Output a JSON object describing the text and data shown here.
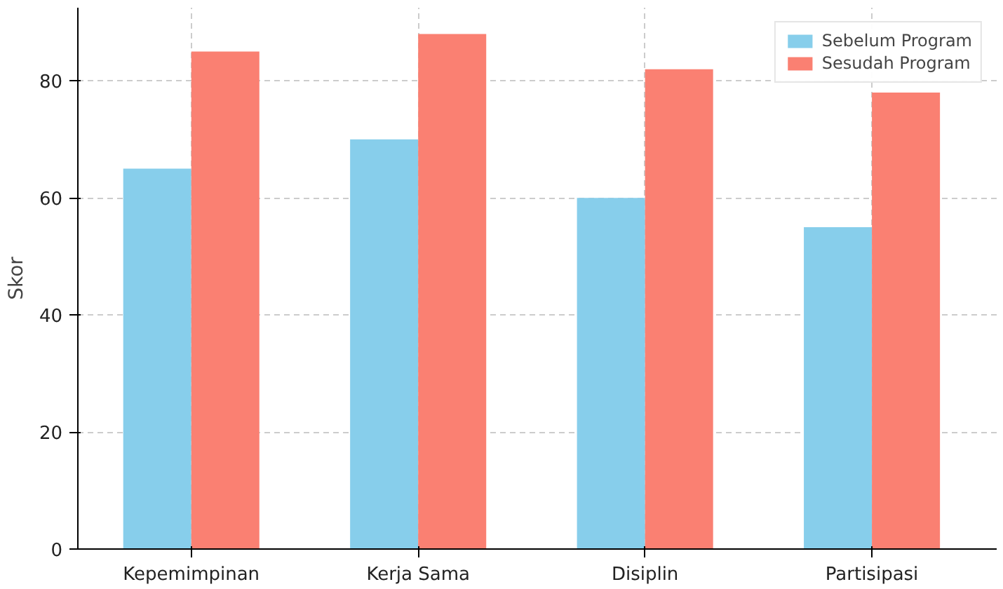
{
  "chart_data": {
    "type": "bar",
    "ylabel": "Skor",
    "categories": [
      "Kepemimpinan",
      "Kerja Sama",
      "Disiplin",
      "Partisipasi"
    ],
    "series": [
      {
        "name": "Sebelum Program",
        "color": "#87ceeb",
        "values": [
          65,
          70,
          60,
          55
        ]
      },
      {
        "name": "Sesudah Program",
        "color": "#fa8072",
        "values": [
          85,
          88,
          82,
          78
        ]
      }
    ],
    "ylim": [
      0,
      92.5
    ],
    "yticks": [
      0,
      20,
      40,
      60,
      80
    ],
    "grid": true,
    "legend": "top right"
  }
}
